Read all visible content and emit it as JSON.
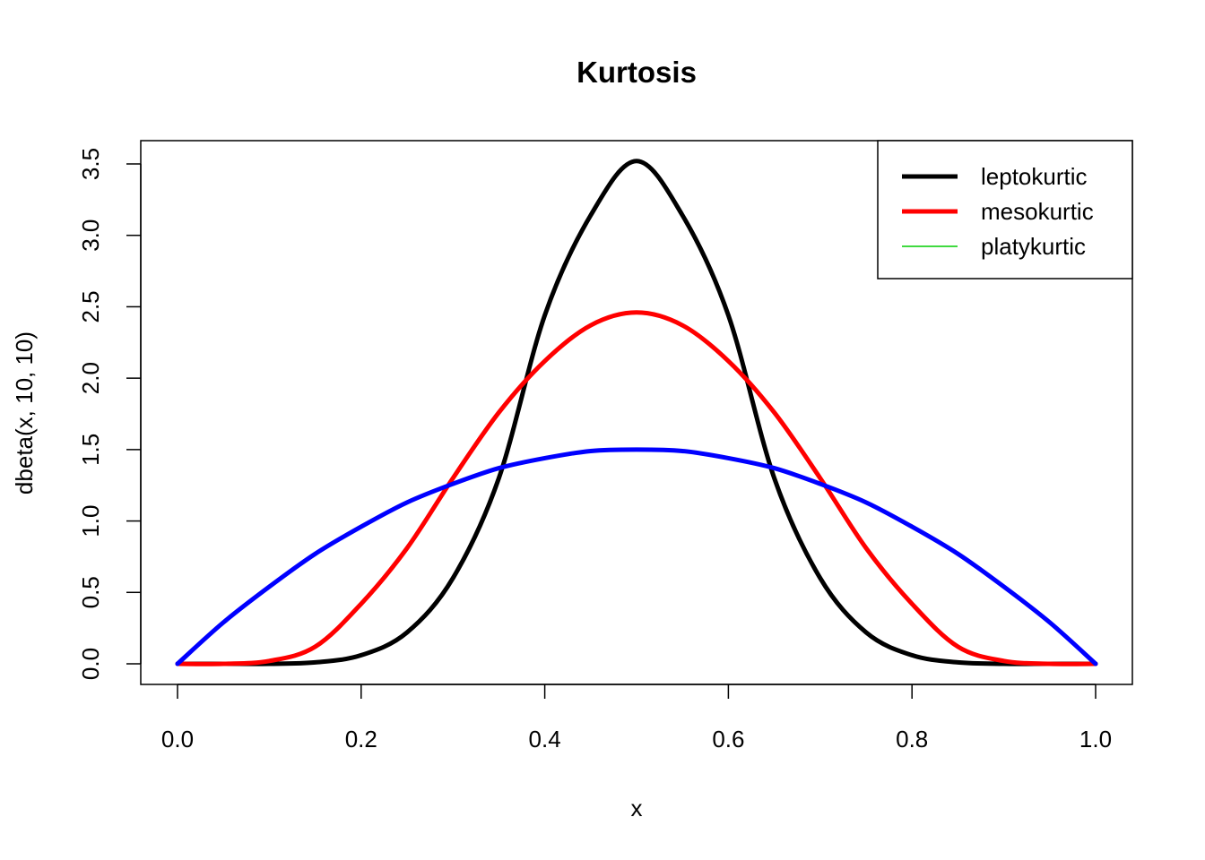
{
  "chart_data": {
    "type": "line",
    "title": "Kurtosis",
    "xlabel": "x",
    "ylabel": "dbeta(x, 10, 10)",
    "xlim": [
      0,
      1
    ],
    "ylim": [
      0,
      3.5
    ],
    "x_ticks": [
      "0.0",
      "0.2",
      "0.4",
      "0.6",
      "0.8",
      "1.0"
    ],
    "y_ticks": [
      "0.0",
      "0.5",
      "1.0",
      "1.5",
      "2.0",
      "2.5",
      "3.0",
      "3.5"
    ],
    "grid": false,
    "legend_position": "top-right",
    "x": [
      0.0,
      0.05,
      0.1,
      0.15,
      0.2,
      0.25,
      0.3,
      0.35,
      0.4,
      0.45,
      0.5,
      0.55,
      0.6,
      0.65,
      0.7,
      0.75,
      0.8,
      0.85,
      0.9,
      0.95,
      1.0
    ],
    "series": [
      {
        "color": "#000000",
        "values": [
          0.0,
          0.0,
          0.0,
          0.01,
          0.06,
          0.22,
          0.6,
          1.3,
          2.44,
          3.14,
          3.52,
          3.14,
          2.44,
          1.3,
          0.6,
          0.22,
          0.06,
          0.01,
          0.0,
          0.0,
          0.0
        ]
      },
      {
        "color": "#ff0000",
        "values": [
          0.0,
          0.0,
          0.02,
          0.12,
          0.42,
          0.81,
          1.3,
          1.76,
          2.12,
          2.37,
          2.46,
          2.37,
          2.12,
          1.76,
          1.3,
          0.81,
          0.42,
          0.12,
          0.02,
          0.0,
          0.0
        ]
      },
      {
        "color": "#0000ff",
        "values": [
          0.0,
          0.29,
          0.54,
          0.77,
          0.96,
          1.13,
          1.26,
          1.37,
          1.44,
          1.49,
          1.5,
          1.49,
          1.44,
          1.37,
          1.26,
          1.13,
          0.96,
          0.77,
          0.54,
          0.29,
          0.0
        ]
      }
    ],
    "legend": [
      {
        "label": "leptokurtic",
        "color": "#000000",
        "width": "thick"
      },
      {
        "label": "mesokurtic",
        "color": "#ff0000",
        "width": "thick"
      },
      {
        "label": "platykurtic",
        "color": "#00cd00",
        "width": "thin"
      }
    ]
  }
}
